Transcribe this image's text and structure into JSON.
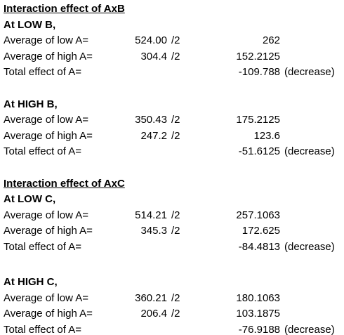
{
  "sections": [
    {
      "title": "Interaction effect of AxB",
      "blocks": [
        {
          "heading": "At LOW B,",
          "rows": [
            {
              "label": "Average of low A=",
              "value": "524.00",
              "divisor": "/2",
              "result": "262"
            },
            {
              "label": "Average of high A=",
              "value": "304.4",
              "divisor": "/2",
              "result": "152.2125"
            },
            {
              "label": "Total effect of A=",
              "result": "-109.788",
              "note": "(decrease)"
            }
          ]
        },
        {
          "heading": "At HIGH B,",
          "rows": [
            {
              "label": "Average of low A=",
              "value": "350.43",
              "divisor": "/2",
              "result": "175.2125"
            },
            {
              "label": "Average of high A=",
              "value": "247.2",
              "divisor": "/2",
              "result": "123.6"
            },
            {
              "label": "Total effect of A=",
              "result": "-51.6125",
              "note": "(decrease)"
            }
          ]
        }
      ]
    },
    {
      "title": "Interaction effect of AxC",
      "blocks": [
        {
          "heading": "At LOW C,",
          "rows": [
            {
              "label": "Average of low A=",
              "value": "514.21",
              "divisor": "/2",
              "result": "257.1063"
            },
            {
              "label": "Average of high A=",
              "value": "345.3",
              "divisor": "/2",
              "result": "172.625"
            },
            {
              "label": "Total effect of A=",
              "result": "-84.4813",
              "note": "(decrease)"
            }
          ]
        },
        {
          "heading": "At HIGH C,",
          "rows": [
            {
              "label": "Average of low A=",
              "value": "360.21",
              "divisor": "/2",
              "result": "180.1063"
            },
            {
              "label": "Average of high A=",
              "value": "206.4",
              "divisor": "/2",
              "result": "103.1875"
            },
            {
              "label": "Total effect of A=",
              "result": "-76.9188",
              "note": "(decrease)"
            }
          ]
        }
      ]
    }
  ]
}
